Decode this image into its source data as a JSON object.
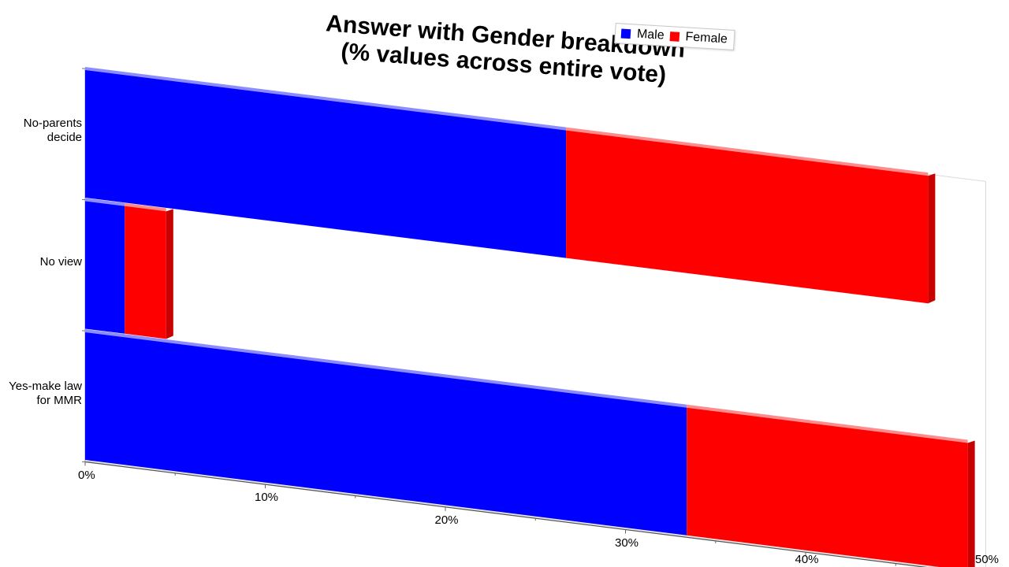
{
  "chart_data": {
    "type": "bar",
    "orientation": "horizontal",
    "stacked": true,
    "title_lines": [
      "Answer with Gender breakdown",
      "(% values across entire vote)"
    ],
    "categories": [
      [
        "No-parents",
        "decide"
      ],
      [
        "No view"
      ],
      [
        "Yes-make law",
        "for MMR"
      ]
    ],
    "series": [
      {
        "name": "Male",
        "color": "#0000ff",
        "values": [
          26.7,
          2.2,
          33.4
        ]
      },
      {
        "name": "Female",
        "color": "#ff0000",
        "values": [
          20.1,
          2.3,
          15.6
        ]
      }
    ],
    "xlim": [
      0,
      50
    ],
    "x_ticks": [
      "0%",
      "10%",
      "20%",
      "30%",
      "40%",
      "50%"
    ],
    "legend_position": "top",
    "perspective": "3d-skewed"
  }
}
